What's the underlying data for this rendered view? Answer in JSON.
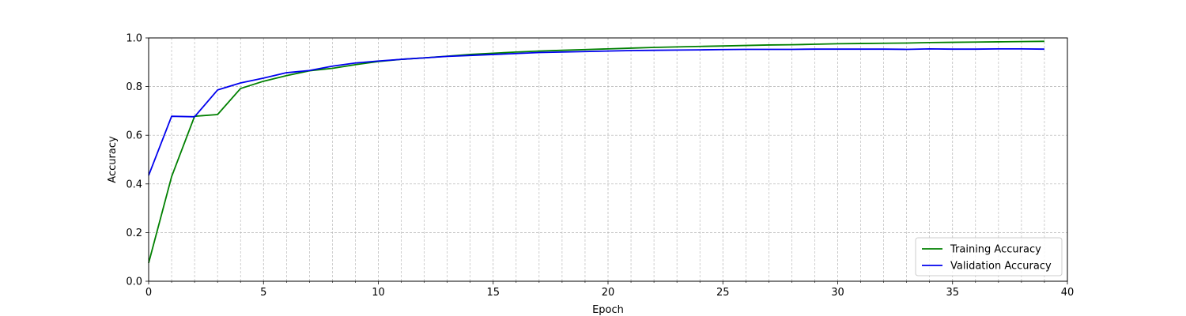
{
  "chart_data": {
    "type": "line",
    "title": "",
    "xlabel": "Epoch",
    "ylabel": "Accuracy",
    "xlim": [
      0,
      40
    ],
    "ylim": [
      0,
      1.0
    ],
    "xticks": [
      0,
      5,
      10,
      15,
      20,
      25,
      30,
      35,
      40
    ],
    "xtick_labels": [
      "0",
      "5",
      "10",
      "15",
      "20",
      "25",
      "30",
      "35",
      "40"
    ],
    "yticks": [
      0,
      0.2,
      0.4,
      0.6,
      0.8,
      1.0
    ],
    "ytick_labels": [
      "0.0",
      "0.2",
      "0.4",
      "0.6",
      "0.8",
      "1.0"
    ],
    "grid": true,
    "minor_grid": true,
    "legend_position": "lower-right",
    "x": [
      0,
      1,
      2,
      3,
      4,
      5,
      6,
      7,
      8,
      9,
      10,
      11,
      12,
      13,
      14,
      15,
      16,
      17,
      18,
      19,
      20,
      21,
      22,
      23,
      24,
      25,
      26,
      27,
      28,
      29,
      30,
      31,
      32,
      33,
      34,
      35,
      36,
      37,
      38,
      39
    ],
    "series": [
      {
        "name": "Training Accuracy",
        "color": "#008000",
        "values": [
          0.075,
          0.43,
          0.678,
          0.685,
          0.792,
          0.822,
          0.845,
          0.865,
          0.875,
          0.89,
          0.903,
          0.912,
          0.918,
          0.925,
          0.932,
          0.937,
          0.942,
          0.946,
          0.949,
          0.952,
          0.955,
          0.958,
          0.961,
          0.963,
          0.965,
          0.967,
          0.969,
          0.971,
          0.972,
          0.974,
          0.976,
          0.977,
          0.978,
          0.979,
          0.981,
          0.982,
          0.983,
          0.984,
          0.985,
          0.986
        ]
      },
      {
        "name": "Validation Accuracy",
        "color": "#0000ee",
        "values": [
          0.435,
          0.678,
          0.676,
          0.786,
          0.815,
          0.835,
          0.857,
          0.866,
          0.884,
          0.897,
          0.905,
          0.912,
          0.918,
          0.924,
          0.928,
          0.932,
          0.936,
          0.94,
          0.942,
          0.944,
          0.946,
          0.948,
          0.949,
          0.95,
          0.951,
          0.952,
          0.953,
          0.953,
          0.953,
          0.954,
          0.954,
          0.954,
          0.954,
          0.953,
          0.955,
          0.954,
          0.954,
          0.955,
          0.955,
          0.954
        ]
      }
    ]
  }
}
